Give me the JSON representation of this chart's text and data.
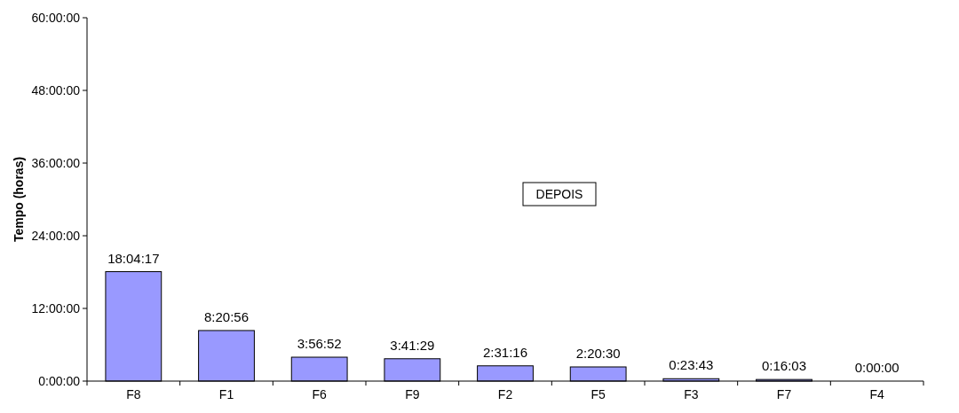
{
  "chart_data": {
    "type": "bar",
    "ylabel": "Tempo (horas)",
    "categories": [
      "F8",
      "F1",
      "F6",
      "F9",
      "F2",
      "F5",
      "F3",
      "F7",
      "F4"
    ],
    "values": [
      18.0714,
      8.3489,
      3.9478,
      3.6914,
      2.5211,
      2.3417,
      0.3953,
      0.2675,
      0
    ],
    "value_labels": [
      "18:04:17",
      "8:20:56",
      "3:56:52",
      "3:41:29",
      "2:31:16",
      "2:20:30",
      "0:23:43",
      "0:16:03",
      "0:00:00"
    ],
    "color": "#9999ff",
    "ylim": [
      0,
      60
    ],
    "yticks": [
      {
        "value": 0,
        "label": "0:00:00"
      },
      {
        "value": 12,
        "label": "12:00:00"
      },
      {
        "value": 24,
        "label": "24:00:00"
      },
      {
        "value": 36,
        "label": "36:00:00"
      },
      {
        "value": 48,
        "label": "48:00:00"
      },
      {
        "value": 60,
        "label": "60:00:00"
      }
    ],
    "annotations": [
      "DEPOIS"
    ],
    "grid": false
  }
}
